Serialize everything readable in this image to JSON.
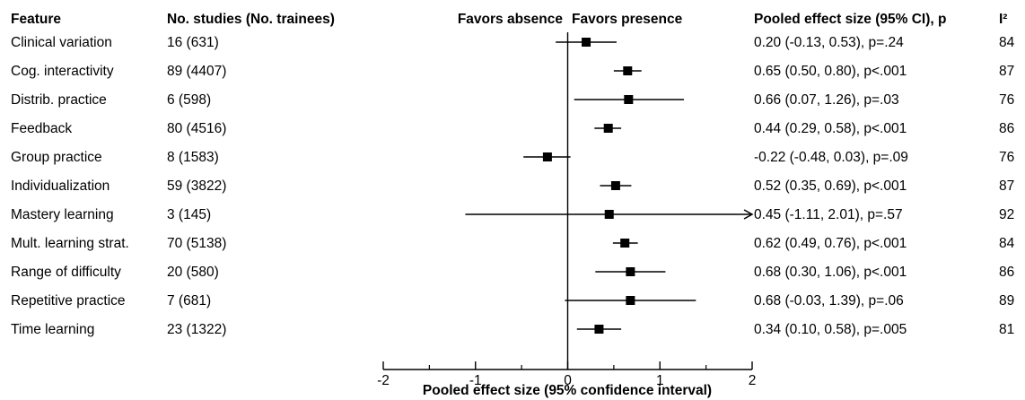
{
  "headers": {
    "feature": "Feature",
    "studies": "No. studies (No. trainees)",
    "favors_absence": "Favors absence",
    "favors_presence": "Favors presence",
    "pooled": "Pooled effect size (95% CI), p",
    "i2": "I²"
  },
  "chart_data": {
    "type": "forest",
    "xlabel": "Pooled effect size (95% confidence interval)",
    "xlim": [
      -2,
      2
    ],
    "xticks": [
      -2,
      -1,
      0,
      1,
      2
    ],
    "reference_line": 0,
    "marker_color": "#000000",
    "rows": [
      {
        "feature": "Clinical variation",
        "studies": "16 (631)",
        "est": 0.2,
        "lo": -0.13,
        "hi": 0.53,
        "ci_text": "0.20 (-0.13, 0.53), p=.24",
        "i2": "84"
      },
      {
        "feature": "Cog. interactivity",
        "studies": "89 (4407)",
        "est": 0.65,
        "lo": 0.5,
        "hi": 0.8,
        "ci_text": "0.65 (0.50, 0.80), p<.001",
        "i2": "87"
      },
      {
        "feature": "Distrib. practice",
        "studies": "6 (598)",
        "est": 0.66,
        "lo": 0.07,
        "hi": 1.26,
        "ci_text": "0.66 (0.07, 1.26), p=.03",
        "i2": "76"
      },
      {
        "feature": "Feedback",
        "studies": "80 (4516)",
        "est": 0.44,
        "lo": 0.29,
        "hi": 0.58,
        "ci_text": "0.44 (0.29, 0.58), p<.001",
        "i2": "86"
      },
      {
        "feature": "Group practice",
        "studies": "8 (1583)",
        "est": -0.22,
        "lo": -0.48,
        "hi": 0.03,
        "ci_text": "-0.22 (-0.48, 0.03), p=.09",
        "i2": "76"
      },
      {
        "feature": "Individualization",
        "studies": "59 (3822)",
        "est": 0.52,
        "lo": 0.35,
        "hi": 0.69,
        "ci_text": "0.52 (0.35, 0.69), p<.001",
        "i2": "87"
      },
      {
        "feature": "Mastery learning",
        "studies": "3 (145)",
        "est": 0.45,
        "lo": -1.11,
        "hi": 2.01,
        "ci_text": "0.45 (-1.11, 2.01), p=.57",
        "i2": "92",
        "truncated_high": true
      },
      {
        "feature": "Mult. learning strat.",
        "studies": "70 (5138)",
        "est": 0.62,
        "lo": 0.49,
        "hi": 0.76,
        "ci_text": "0.62 (0.49, 0.76), p<.001",
        "i2": "84"
      },
      {
        "feature": "Range of difficulty",
        "studies": "20 (580)",
        "est": 0.68,
        "lo": 0.3,
        "hi": 1.06,
        "ci_text": "0.68 (0.30, 1.06), p<.001",
        "i2": "86"
      },
      {
        "feature": "Repetitive practice",
        "studies": "7 (681)",
        "est": 0.68,
        "lo": -0.03,
        "hi": 1.39,
        "ci_text": "0.68 (-0.03, 1.39), p=.06",
        "i2": "89"
      },
      {
        "feature": "Time learning",
        "studies": "23 (1322)",
        "est": 0.34,
        "lo": 0.1,
        "hi": 0.58,
        "ci_text": "0.34 (0.10, 0.58), p=.005",
        "i2": "81"
      }
    ]
  }
}
